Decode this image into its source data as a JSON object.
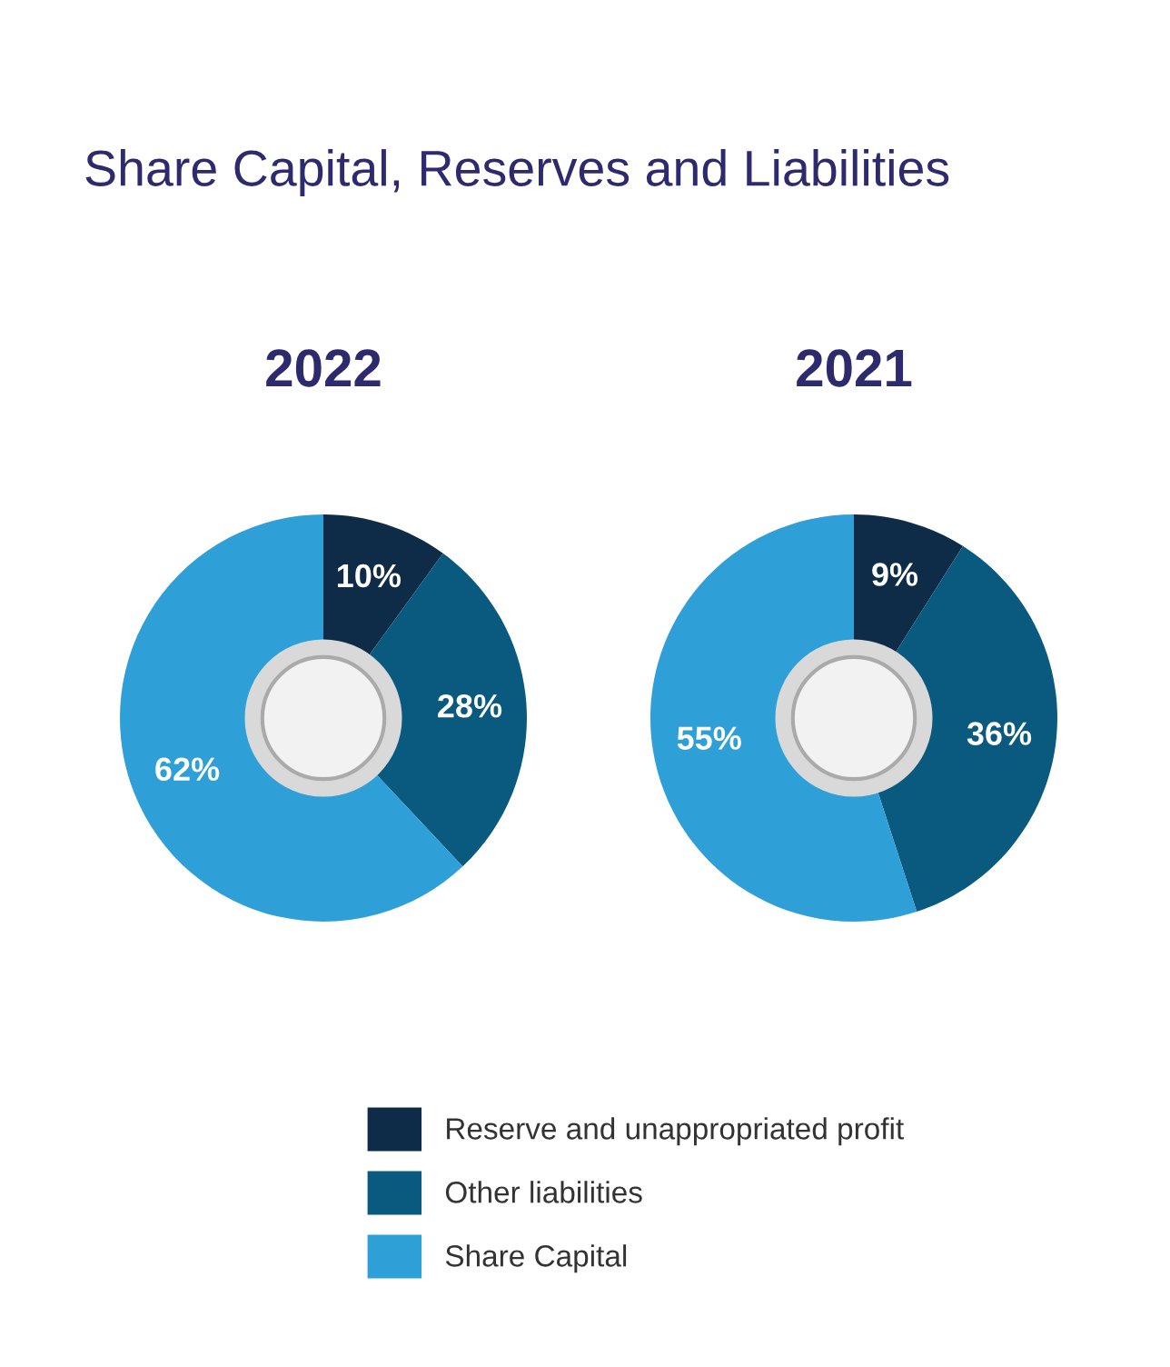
{
  "chart_data": [
    {
      "type": "donut",
      "title": "Share Capital, Reserves and Liabilities",
      "subtitle": "2022",
      "categories": [
        "Reserve and unappropriated profit",
        "Other liabilities",
        "Share Capital"
      ],
      "values": [
        10,
        28,
        62
      ],
      "value_labels": [
        "10%",
        "28%",
        "62%"
      ],
      "colors": [
        "#0e2c47",
        "#0a5a80",
        "#2f9fd8"
      ],
      "legend": "bottom"
    },
    {
      "type": "donut",
      "subtitle": "2021",
      "values": [
        9,
        36,
        55
      ],
      "value_labels": [
        "9%",
        "36%",
        "55%"
      ],
      "colors": [
        "#0e2c47",
        "#0a5a80",
        "#2f9fd8"
      ]
    }
  ]
}
